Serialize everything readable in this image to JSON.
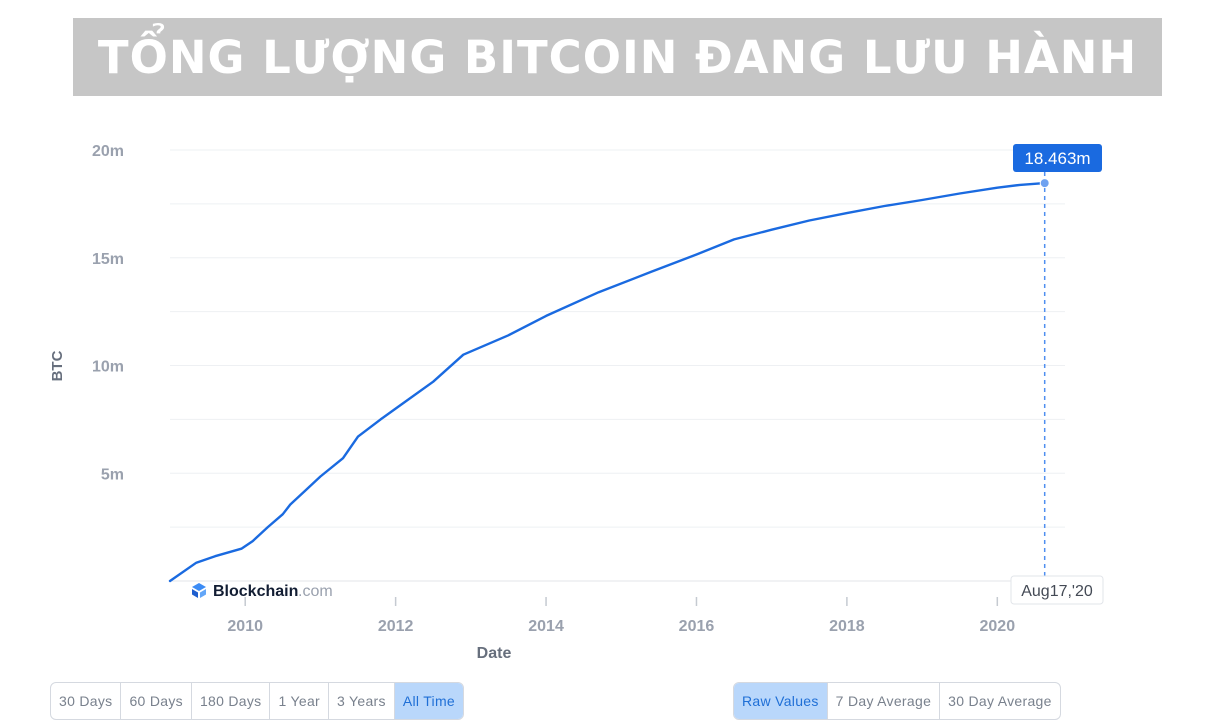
{
  "banner": {
    "title": "TỔNG LƯỢNG BITCOIN ĐANG LƯU HÀNH"
  },
  "colors": {
    "line": "#1a6ae0",
    "tooltip_bg": "#1a6ae0",
    "grid": "#eef0f3",
    "axis_text": "#9aa1ae",
    "axis_title": "#676f7d",
    "banner_bg": "#c6c6c6"
  },
  "watermark": {
    "brand": "Blockchain",
    "suffix": ".com",
    "icon": "blockchain-logo-icon"
  },
  "chart_data": {
    "type": "line",
    "title": "",
    "xlabel": "Date",
    "ylabel": "BTC",
    "ylim": [
      0,
      20000000
    ],
    "xlim": [
      2009.0,
      2020.9
    ],
    "grid": true,
    "x_ticks": [
      2010,
      2012,
      2014,
      2016,
      2018,
      2020
    ],
    "x_tick_labels": [
      "2010",
      "2012",
      "2014",
      "2016",
      "2018",
      "2020"
    ],
    "y_ticks": [
      5000000,
      10000000,
      15000000,
      20000000
    ],
    "y_tick_labels": [
      "5m",
      "10m",
      "15m",
      "20m"
    ],
    "series": [
      {
        "x": [
          2009.0,
          2009.35,
          2009.6,
          2009.95,
          2010.1,
          2010.3,
          2010.5,
          2010.6,
          2010.8,
          2011.0,
          2011.3,
          2011.5,
          2011.8,
          2012.0,
          2012.5,
          2012.9,
          2013.5,
          2014.0,
          2014.7,
          2015.4,
          2016.0,
          2016.5,
          2017.0,
          2017.5,
          2018.0,
          2018.5,
          2019.0,
          2019.5,
          2020.0,
          2020.3,
          2020.63
        ],
        "y": [
          0,
          850000,
          1150000,
          1500000,
          1850000,
          2500000,
          3100000,
          3550000,
          4200000,
          4850000,
          5700000,
          6700000,
          7500000,
          8000000,
          9250000,
          10500000,
          11400000,
          12300000,
          13400000,
          14350000,
          15150000,
          15850000,
          16300000,
          16730000,
          17070000,
          17400000,
          17680000,
          17980000,
          18250000,
          18380000,
          18463000
        ]
      }
    ],
    "tooltip": {
      "value": "18.463m",
      "date": "Aug17,'20"
    }
  },
  "range_buttons": [
    "30 Days",
    "60 Days",
    "180 Days",
    "1 Year",
    "3 Years",
    "All Time"
  ],
  "range_active": "All Time",
  "mode_buttons": [
    "Raw Values",
    "7 Day Average",
    "30 Day Average"
  ],
  "mode_active": "Raw Values"
}
